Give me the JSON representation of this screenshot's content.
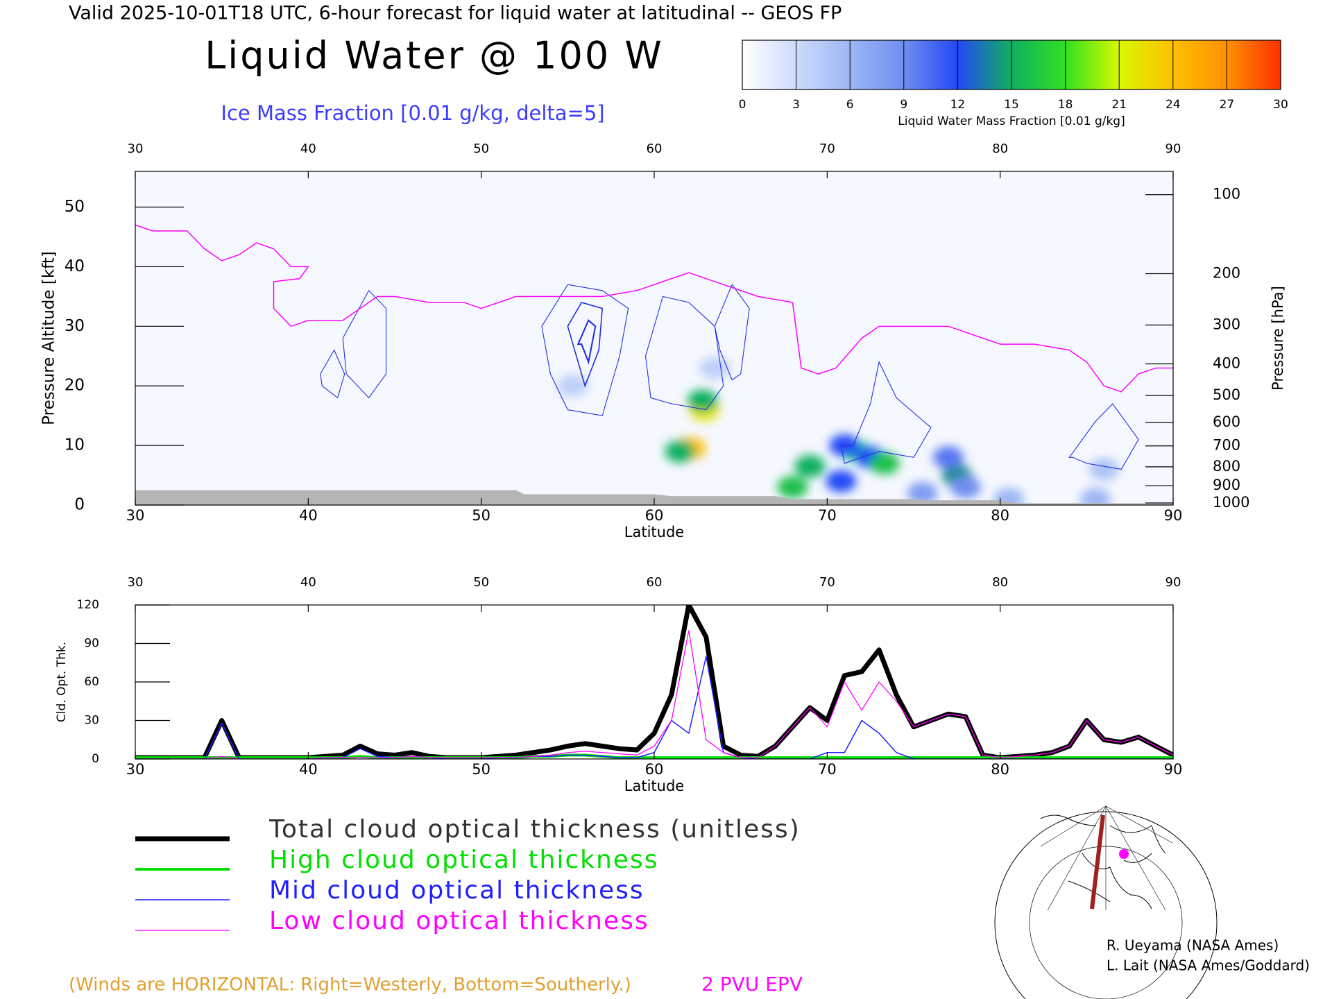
{
  "chart_data": [
    {
      "type": "cross_section",
      "suptitle": "Valid 2025-10-01T18 UTC, 6-hour forecast for liquid water at latitudinal -- GEOS FP",
      "title": "Liquid Water @ 100 W",
      "subtitle": "Ice Mass Fraction [0.01 g/kg, delta=5]",
      "xlabel": "Latitude",
      "ylabel": "Pressure Altitude [kft]",
      "y2label": "Pressure [hPa]",
      "xlim": [
        30,
        90
      ],
      "xticks": [
        30,
        40,
        50,
        60,
        70,
        80,
        90
      ],
      "ylim": [
        0,
        56
      ],
      "yticks": [
        0,
        10,
        20,
        30,
        40,
        50
      ],
      "y2lim": [
        1013,
        80
      ],
      "y2ticks": [
        100,
        200,
        300,
        400,
        500,
        600,
        700,
        800,
        900,
        1000
      ],
      "colorbar": {
        "label": "Liquid Water Mass Fraction [0.01 g/kg]",
        "ticks": [
          0,
          3,
          6,
          9,
          12,
          15,
          18,
          21,
          24,
          27,
          30
        ],
        "colors": [
          "#ffffff",
          "#cddbfb",
          "#9db6f5",
          "#6f8ef0",
          "#2348f5",
          "#10b060",
          "#30e020",
          "#d8f800",
          "#ffc000",
          "#ff9000",
          "#ff3000"
        ]
      },
      "liquid_water": {
        "x": [
          62.1,
          61.5,
          62.9,
          62.8,
          71.7,
          72.5,
          73.3,
          69,
          68,
          77.5,
          77,
          78,
          75.5,
          80.5,
          85.5,
          86,
          63.5,
          55.3,
          70.8,
          71
        ],
        "y": [
          9.5,
          9,
          16,
          17.5,
          9,
          8,
          7,
          6.5,
          3,
          5,
          8,
          3,
          2,
          1,
          1,
          6,
          23,
          20,
          4,
          10
        ],
        "values": [
          24,
          15,
          22,
          15,
          17,
          12,
          16,
          15,
          16,
          14,
          10,
          9,
          8,
          6,
          6,
          5,
          4,
          4,
          12,
          12
        ]
      },
      "ice_contour_color": "#2030e0",
      "ice_contours": [
        {
          "level": 5,
          "x": [
            42,
            43.5,
            44.5,
            44.5,
            43.5,
            42.2,
            42
          ],
          "y": [
            28,
            36,
            33,
            22,
            18,
            22,
            28
          ]
        },
        {
          "level": 5,
          "x": [
            40.7,
            41.5,
            42.1,
            41.7,
            40.8
          ],
          "y": [
            22,
            26,
            22,
            18,
            20
          ]
        },
        {
          "level": 5,
          "x": [
            53.5,
            55,
            57,
            58.5,
            58,
            57,
            55,
            54,
            53.5
          ],
          "y": [
            30,
            37,
            36,
            33,
            25,
            15,
            16,
            22,
            30
          ]
        },
        {
          "level": 10,
          "x": [
            55,
            55.8,
            57,
            56.8,
            56,
            55.4
          ],
          "y": [
            30,
            34,
            33,
            26,
            20,
            26
          ]
        },
        {
          "level": 15,
          "x": [
            55.6,
            56.2,
            56.6,
            56.2,
            55.8
          ],
          "y": [
            27,
            31,
            30,
            24,
            27
          ]
        },
        {
          "level": 5,
          "x": [
            59.5,
            60.5,
            62,
            63.5,
            64,
            63,
            61,
            59.8,
            59.5
          ],
          "y": [
            25,
            35,
            34,
            30,
            20,
            16,
            17,
            18,
            25
          ]
        },
        {
          "level": 5,
          "x": [
            63.5,
            64.5,
            65.5,
            65,
            64.5,
            63.8
          ],
          "y": [
            30,
            37,
            33,
            22,
            21,
            26
          ]
        },
        {
          "level": 5,
          "x": [
            71.5,
            72.5,
            73,
            74,
            76,
            75,
            73,
            71,
            70.8
          ],
          "y": [
            10,
            17,
            24,
            18,
            13,
            8,
            9,
            7,
            10
          ]
        },
        {
          "level": 5,
          "x": [
            84,
            85.5,
            86.5,
            88,
            87,
            85,
            84.2
          ],
          "y": [
            8,
            14,
            17,
            11,
            6,
            7,
            8
          ]
        }
      ],
      "terrain": {
        "color": "#b4b4b4",
        "x": [
          30,
          34,
          34.5,
          44,
          44.5,
          52,
          52.5,
          60,
          61,
          67,
          68,
          75,
          76,
          80,
          81,
          90
        ],
        "y": [
          2.5,
          2.5,
          2.5,
          2.5,
          2.5,
          2.5,
          1.8,
          1.8,
          1.5,
          1.5,
          1.0,
          1.0,
          0.8,
          0.8,
          0.3,
          0.3
        ]
      },
      "epv": {
        "name": "2 PVU EPV",
        "color": "#ff00ff",
        "x": [
          30,
          31,
          33,
          34,
          35,
          36,
          37,
          38,
          39,
          40,
          39.5,
          38,
          38,
          39,
          40,
          42,
          44,
          45,
          47,
          49,
          50,
          52,
          55,
          57,
          59,
          61,
          62,
          64,
          66,
          68,
          68.5,
          69.5,
          70.5,
          72,
          73,
          75,
          77,
          78,
          80,
          82,
          84,
          85,
          86,
          87,
          88,
          89,
          90
        ],
        "y": [
          47,
          46,
          46,
          43,
          41,
          42,
          44,
          43,
          40,
          40,
          38,
          37.5,
          33,
          30,
          31,
          31,
          35,
          35,
          34,
          34,
          33,
          35,
          35,
          35,
          36,
          38,
          39,
          37,
          35,
          34,
          23,
          22,
          23,
          28,
          30,
          30,
          30,
          29,
          27,
          27,
          26,
          24,
          20,
          19,
          22,
          23,
          23
        ]
      },
      "note": "(Winds are HORIZONTAL: Right=Westerly, Bottom=Southerly.)"
    },
    {
      "type": "line",
      "xlabel": "Latitude",
      "ylabel": "Cld. Opt. Thk.",
      "xlim": [
        30,
        90
      ],
      "xticks": [
        30,
        40,
        50,
        60,
        70,
        80,
        90
      ],
      "ylim": [
        0,
        120
      ],
      "yticks": [
        0,
        30,
        60,
        90,
        120
      ],
      "x": [
        30,
        31,
        32,
        33,
        34,
        35,
        36,
        37,
        38,
        39,
        40,
        41,
        42,
        43,
        44,
        45,
        46,
        47,
        48,
        49,
        50,
        51,
        52,
        53,
        54,
        55,
        56,
        57,
        58,
        59,
        60,
        61,
        62,
        63,
        64,
        65,
        66,
        67,
        68,
        69,
        70,
        71,
        72,
        73,
        74,
        75,
        76,
        77,
        78,
        79,
        80,
        81,
        82,
        83,
        84,
        85,
        86,
        87,
        88,
        89,
        90
      ],
      "series": [
        {
          "name": "Total cloud optical thickness (unitless)",
          "color": "#000000",
          "width": 7,
          "values": [
            1,
            1,
            1,
            1,
            1,
            30,
            1,
            1,
            1,
            1,
            1,
            2,
            3,
            10,
            4,
            3,
            5,
            2,
            1,
            1,
            1,
            2,
            3,
            5,
            7,
            10,
            12,
            10,
            8,
            7,
            20,
            50,
            120,
            95,
            10,
            3,
            2,
            10,
            25,
            40,
            30,
            65,
            68,
            85,
            50,
            25,
            30,
            35,
            33,
            3,
            1,
            2,
            3,
            5,
            10,
            30,
            15,
            13,
            17,
            10,
            3
          ]
        },
        {
          "name": "High cloud optical thickness",
          "color": "#00e000",
          "width": 4,
          "values": [
            1,
            1,
            1,
            1,
            1,
            1,
            1,
            1,
            1,
            1,
            1,
            1,
            1,
            2,
            1,
            1,
            1,
            1,
            1,
            1,
            1,
            1,
            1,
            2,
            2,
            3,
            3,
            2,
            1,
            1,
            1,
            1,
            1,
            1,
            1,
            1,
            1,
            1,
            1,
            1,
            1,
            1,
            1,
            1,
            1,
            1,
            1,
            1,
            1,
            1,
            1,
            1,
            1,
            1,
            1,
            1,
            1,
            1,
            1,
            1,
            1
          ]
        },
        {
          "name": "Mid cloud optical thickness",
          "color": "#2020ff",
          "width": 1.5,
          "values": [
            0,
            0,
            0,
            0,
            0,
            28,
            0,
            0,
            0,
            0,
            0,
            1,
            1,
            8,
            2,
            1,
            2,
            1,
            0,
            0,
            0,
            1,
            1,
            2,
            2,
            3,
            3,
            2,
            1,
            1,
            5,
            30,
            20,
            80,
            5,
            1,
            0,
            0,
            0,
            0,
            5,
            5,
            30,
            20,
            5,
            0,
            0,
            0,
            0,
            0,
            0,
            0,
            0,
            0,
            0,
            0,
            0,
            0,
            0,
            0,
            0
          ]
        },
        {
          "name": "Low cloud optical thickness",
          "color": "#ff00ff",
          "width": 1.3,
          "values": [
            0,
            0,
            0,
            0,
            0,
            2,
            0,
            0,
            0,
            0,
            0,
            1,
            1,
            1,
            1,
            1,
            2,
            1,
            1,
            1,
            1,
            1,
            1,
            2,
            3,
            5,
            6,
            5,
            4,
            3,
            10,
            30,
            100,
            15,
            5,
            1,
            1,
            10,
            25,
            40,
            25,
            60,
            38,
            60,
            45,
            25,
            30,
            35,
            33,
            3,
            1,
            2,
            3,
            5,
            10,
            30,
            15,
            13,
            17,
            10,
            3
          ]
        }
      ]
    }
  ],
  "footer": {
    "credits": [
      "R. Ueyama (NASA Ames)",
      "L. Lait (NASA Ames/Goddard)"
    ]
  }
}
